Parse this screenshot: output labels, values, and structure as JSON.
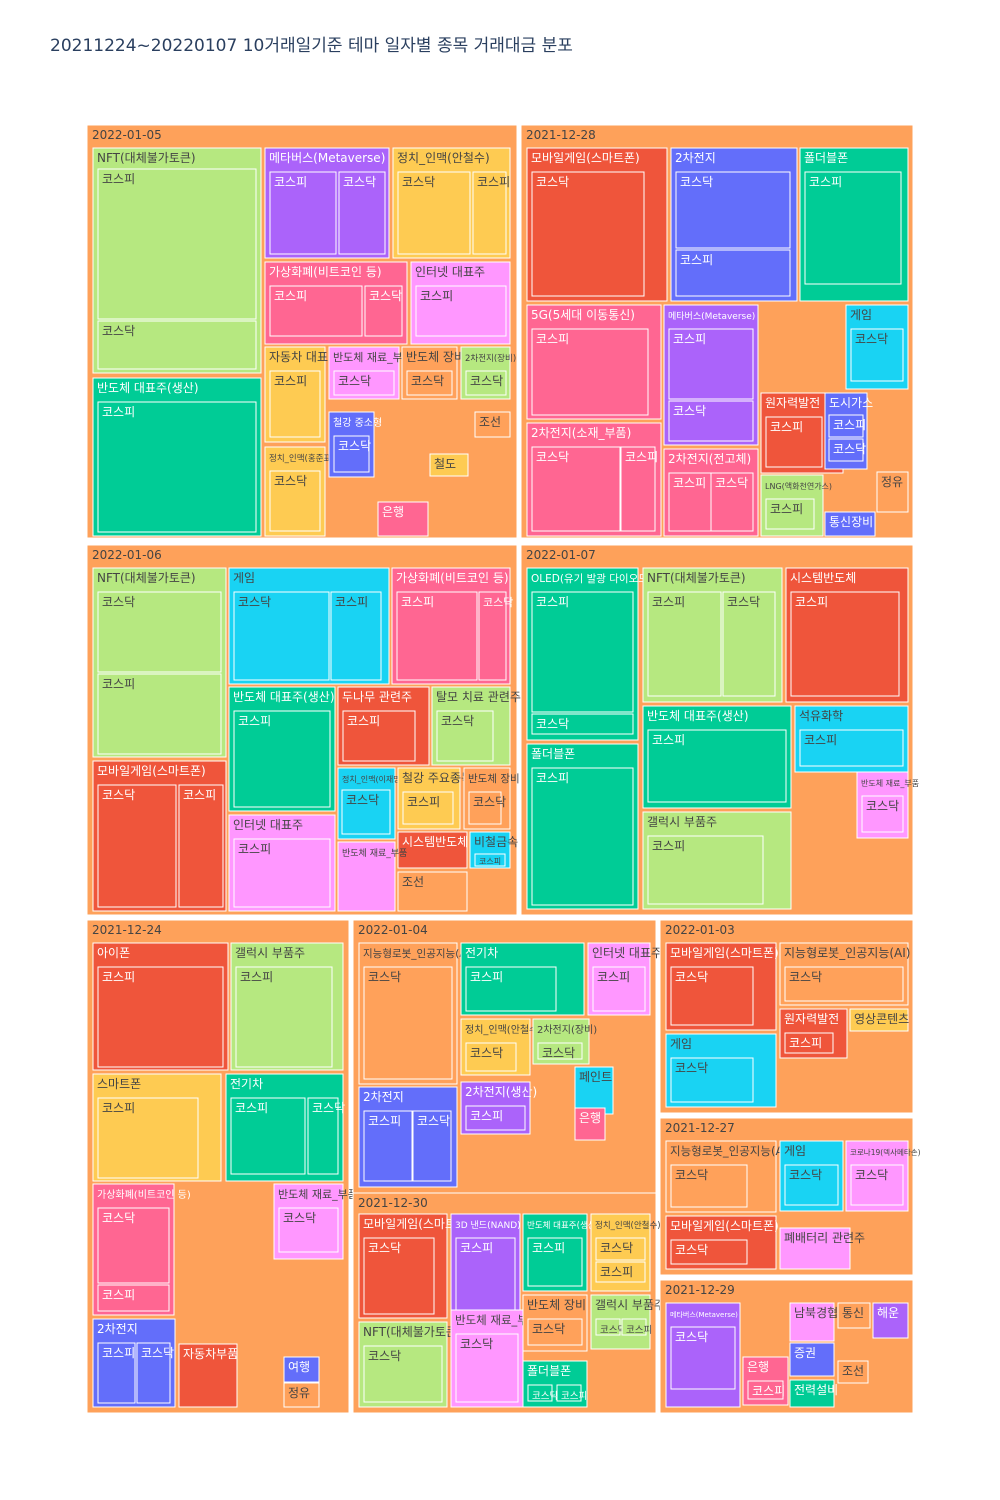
{
  "chart_data": {
    "type": "treemap",
    "title": "20211224~20220107 10거래일기준 테마 일자별 종목 거래대금 분포",
    "colors": {
      "date_bg": "#fea15a",
      "green_light": "#b6e880",
      "green": "#00cc96",
      "blue": "#636efa",
      "purple": "#ab63fa",
      "yellow": "#fecb52",
      "pink": "#ff6692",
      "pink_light": "#ff97ff",
      "red": "#ef553b",
      "orange": "#ffa15a",
      "cyan": "#19d3f3"
    },
    "dates": [
      {
        "label": "2022-01-05",
        "themes": [
          {
            "name": "NFT(대체불가토큰)",
            "color": "green_light",
            "markets": [
              "코스피",
              "코스닥"
            ]
          },
          {
            "name": "반도체 대표주(생산)",
            "color": "green",
            "markets": [
              "코스피"
            ]
          },
          {
            "name": "메타버스(Metaverse)",
            "color": "purple",
            "markets": [
              "코스피",
              "코스닥"
            ]
          },
          {
            "name": "정치_인맥(안철수)",
            "color": "yellow",
            "markets": [
              "코스닥",
              "코스피"
            ]
          },
          {
            "name": "가상화폐(비트코인 등)",
            "color": "pink",
            "markets": [
              "코스피",
              "코스닥"
            ]
          },
          {
            "name": "인터넷 대표주",
            "color": "pink_light",
            "markets": [
              "코스피"
            ]
          },
          {
            "name": "자동차 대표주",
            "color": "yellow",
            "markets": [
              "코스피"
            ]
          },
          {
            "name": "반도체 재료_부품",
            "color": "pink_light",
            "markets": [
              "코스닥"
            ]
          },
          {
            "name": "반도체 장비",
            "color": "orange",
            "markets": [
              "코스닥"
            ]
          },
          {
            "name": "2차전지(장비)",
            "color": "green_light",
            "markets": [
              "코스닥"
            ]
          },
          {
            "name": "정치_인맥(홍준표)",
            "color": "yellow",
            "markets": [
              "코스닥"
            ]
          },
          {
            "name": "철강 중소형",
            "color": "blue",
            "markets": [
              "코스닥"
            ]
          },
          {
            "name": "조선",
            "color": "orange",
            "markets": []
          },
          {
            "name": "철도",
            "color": "yellow",
            "markets": []
          },
          {
            "name": "은행",
            "color": "pink",
            "markets": []
          }
        ]
      },
      {
        "label": "2021-12-28",
        "themes": [
          {
            "name": "모바일게임(스마트폰)",
            "color": "red",
            "markets": [
              "코스닥"
            ]
          },
          {
            "name": "2차전지",
            "color": "blue",
            "markets": [
              "코스닥",
              "코스피"
            ]
          },
          {
            "name": "폴더블폰",
            "color": "green",
            "markets": [
              "코스피"
            ]
          },
          {
            "name": "5G(5세대 이동통신)",
            "color": "pink",
            "markets": [
              "코스피"
            ]
          },
          {
            "name": "2차전지(소재_부품)",
            "color": "pink",
            "markets": [
              "코스닥",
              "코스피"
            ]
          },
          {
            "name": "메타버스(Metaverse)",
            "color": "purple",
            "markets": [
              "코스피",
              "코스닥"
            ]
          },
          {
            "name": "게임",
            "color": "cyan",
            "markets": [
              "코스닥"
            ]
          },
          {
            "name": "원자력발전",
            "color": "red",
            "markets": [
              "코스피"
            ]
          },
          {
            "name": "2차전지(전고체)",
            "color": "pink",
            "markets": [
              "코스피",
              "코스닥"
            ]
          },
          {
            "name": "도시가스",
            "color": "blue",
            "markets": [
              "코스피",
              "코스닥"
            ]
          },
          {
            "name": "LNG(액화천연가스)",
            "color": "green_light",
            "markets": [
              "코스피"
            ]
          },
          {
            "name": "정유",
            "color": "orange",
            "markets": []
          },
          {
            "name": "통신장비",
            "color": "blue",
            "markets": []
          }
        ]
      },
      {
        "label": "2022-01-06",
        "themes": [
          {
            "name": "NFT(대체불가토큰)",
            "color": "green_light",
            "markets": [
              "코스닥",
              "코스피"
            ]
          },
          {
            "name": "게임",
            "color": "cyan",
            "markets": [
              "코스닥",
              "코스피"
            ]
          },
          {
            "name": "가상화폐(비트코인 등)",
            "color": "pink",
            "markets": [
              "코스피",
              "코스닥"
            ]
          },
          {
            "name": "모바일게임(스마트폰)",
            "color": "red",
            "markets": [
              "코스닥",
              "코스피"
            ]
          },
          {
            "name": "반도체 대표주(생산)",
            "color": "green",
            "markets": [
              "코스피"
            ]
          },
          {
            "name": "두나무 관련주",
            "color": "red",
            "markets": [
              "코스피"
            ]
          },
          {
            "name": "탈모 치료 관련주",
            "color": "green_light",
            "markets": [
              "코스닥"
            ]
          },
          {
            "name": "인터넷 대표주",
            "color": "pink_light",
            "markets": [
              "코스피"
            ]
          },
          {
            "name": "정치_인맥(이재명)",
            "color": "cyan",
            "markets": [
              "코스닥"
            ]
          },
          {
            "name": "철강 주요종목",
            "color": "yellow",
            "markets": [
              "코스피"
            ]
          },
          {
            "name": "반도체 장비",
            "color": "orange",
            "markets": [
              "코스닥"
            ]
          },
          {
            "name": "시스템반도체",
            "color": "red",
            "markets": []
          },
          {
            "name": "비철금속",
            "color": "cyan",
            "markets": [
              "코스피"
            ]
          },
          {
            "name": "반도체 재료_부품",
            "color": "pink_light",
            "markets": [
              "코스닥"
            ]
          },
          {
            "name": "조선",
            "color": "orange",
            "markets": []
          }
        ]
      },
      {
        "label": "2022-01-07",
        "themes": [
          {
            "name": "OLED(유기 발광 다이오드)",
            "color": "green",
            "markets": [
              "코스피",
              "코스닥"
            ]
          },
          {
            "name": "NFT(대체불가토큰)",
            "color": "green_light",
            "markets": [
              "코스피",
              "코스닥"
            ]
          },
          {
            "name": "시스템반도체",
            "color": "red",
            "markets": [
              "코스피"
            ]
          },
          {
            "name": "폴더블폰",
            "color": "green",
            "markets": [
              "코스피"
            ]
          },
          {
            "name": "반도체 대표주(생산)",
            "color": "green",
            "markets": [
              "코스피"
            ]
          },
          {
            "name": "석유화학",
            "color": "cyan",
            "markets": [
              "코스피"
            ]
          },
          {
            "name": "갤럭시 부품주",
            "color": "green_light",
            "markets": [
              "코스피"
            ]
          },
          {
            "name": "반도체 재료_부품",
            "color": "pink_light",
            "markets": [
              "코스닥"
            ]
          }
        ]
      },
      {
        "label": "2021-12-24",
        "themes": [
          {
            "name": "아이폰",
            "color": "red",
            "markets": [
              "코스피"
            ]
          },
          {
            "name": "갤럭시 부품주",
            "color": "green_light",
            "markets": [
              "코스피"
            ]
          },
          {
            "name": "스마트폰",
            "color": "yellow",
            "markets": [
              "코스피"
            ]
          },
          {
            "name": "전기차",
            "color": "green",
            "markets": [
              "코스피",
              "코스닥"
            ]
          },
          {
            "name": "가상화폐(비트코인 등)",
            "color": "pink",
            "markets": [
              "코스닥",
              "코스피"
            ]
          },
          {
            "name": "반도체 재료_부품",
            "color": "pink_light",
            "markets": [
              "코스닥"
            ]
          },
          {
            "name": "2차전지",
            "color": "blue",
            "markets": [
              "코스피",
              "코스닥"
            ]
          },
          {
            "name": "자동차부품",
            "color": "red",
            "markets": []
          },
          {
            "name": "여행",
            "color": "blue",
            "markets": []
          },
          {
            "name": "정유",
            "color": "orange",
            "markets": []
          }
        ]
      },
      {
        "label": "2022-01-04",
        "themes": [
          {
            "name": "지능형로봇_인공지능(AI)",
            "color": "orange",
            "markets": [
              "코스닥"
            ]
          },
          {
            "name": "전기차",
            "color": "green",
            "markets": [
              "코스피"
            ]
          },
          {
            "name": "인터넷 대표주",
            "color": "pink_light",
            "markets": [
              "코스피"
            ]
          },
          {
            "name": "2차전지",
            "color": "blue",
            "markets": [
              "코스피",
              "코스닥"
            ]
          },
          {
            "name": "정치_인맥(안철수)",
            "color": "yellow",
            "markets": [
              "코스닥"
            ]
          },
          {
            "name": "2차전지(장비)",
            "color": "green_light",
            "markets": [
              "코스닥"
            ]
          },
          {
            "name": "2차전지(생산)",
            "color": "purple",
            "markets": [
              "코스피"
            ]
          },
          {
            "name": "페인트",
            "color": "cyan",
            "markets": []
          },
          {
            "name": "은행",
            "color": "pink",
            "markets": []
          }
        ]
      },
      {
        "label": "2022-01-03",
        "themes": [
          {
            "name": "모바일게임(스마트폰)",
            "color": "red",
            "markets": [
              "코스닥"
            ]
          },
          {
            "name": "지능형로봇_인공지능(AI)",
            "color": "orange",
            "markets": [
              "코스닥"
            ]
          },
          {
            "name": "게임",
            "color": "cyan",
            "markets": [
              "코스닥"
            ]
          },
          {
            "name": "원자력발전",
            "color": "red",
            "markets": [
              "코스피"
            ]
          },
          {
            "name": "영상콘텐츠",
            "color": "yellow",
            "markets": []
          }
        ]
      },
      {
        "label": "2021-12-27",
        "themes": [
          {
            "name": "지능형로봇_인공지능(AI)",
            "color": "orange",
            "markets": [
              "코스닥"
            ]
          },
          {
            "name": "게임",
            "color": "cyan",
            "markets": [
              "코스닥"
            ]
          },
          {
            "name": "코로나19(덱사메타손)",
            "color": "pink_light",
            "markets": [
              "코스닥"
            ]
          },
          {
            "name": "모바일게임(스마트폰)",
            "color": "red",
            "markets": [
              "코스닥"
            ]
          },
          {
            "name": "폐배터리 관련주",
            "color": "pink_light",
            "markets": []
          }
        ]
      },
      {
        "label": "2021-12-30",
        "themes": [
          {
            "name": "모바일게임(스마트폰)",
            "color": "red",
            "markets": [
              "코스닥"
            ]
          },
          {
            "name": "3D 낸드(NAND)",
            "color": "purple",
            "markets": [
              "코스피"
            ]
          },
          {
            "name": "반도체 대표주(생산)",
            "color": "green",
            "markets": [
              "코스피"
            ]
          },
          {
            "name": "정치_인맥(안철수)",
            "color": "yellow",
            "markets": [
              "코스닥",
              "코스피"
            ]
          },
          {
            "name": "NFT(대체불가토큰)",
            "color": "green_light",
            "markets": [
              "코스닥"
            ]
          },
          {
            "name": "반도체 재료_부품",
            "color": "pink_light",
            "markets": [
              "코스닥"
            ]
          },
          {
            "name": "반도체 장비",
            "color": "orange",
            "markets": [
              "코스닥"
            ]
          },
          {
            "name": "갤럭시 부품주",
            "color": "green_light",
            "markets": [
              "코스닥",
              "코스피"
            ]
          },
          {
            "name": "폴더블폰",
            "color": "green",
            "markets": [
              "코스닥",
              "코스피"
            ]
          }
        ]
      },
      {
        "label": "2021-12-29",
        "themes": [
          {
            "name": "메타버스(Metaverse)",
            "color": "purple",
            "markets": [
              "코스닥"
            ]
          },
          {
            "name": "은행",
            "color": "pink",
            "markets": [
              "코스피"
            ]
          },
          {
            "name": "증권",
            "color": "blue",
            "markets": []
          },
          {
            "name": "남북경협",
            "color": "pink_light",
            "markets": []
          },
          {
            "name": "통신",
            "color": "orange",
            "markets": []
          },
          {
            "name": "해운",
            "color": "purple",
            "markets": []
          },
          {
            "name": "조선",
            "color": "orange",
            "markets": []
          },
          {
            "name": "전력설비",
            "color": "green",
            "markets": []
          }
        ]
      }
    ]
  }
}
